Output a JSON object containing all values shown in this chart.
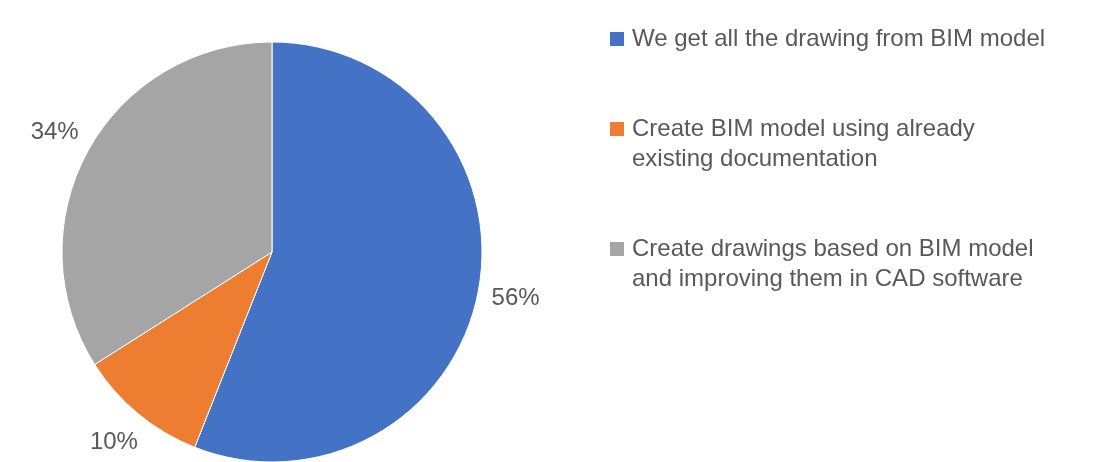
{
  "chart_data": {
    "type": "pie",
    "categories": [
      "We get all the drawing from BIM model",
      "Create BIM model using already existing documentation",
      "Create drawings based on BIM model and improving them in CAD software"
    ],
    "values": [
      56,
      10,
      34
    ],
    "colors": [
      "#4472c4",
      "#ed7d31",
      "#a5a5a5"
    ],
    "value_labels": [
      "56%",
      "10%",
      "34%"
    ],
    "legend": "right"
  }
}
